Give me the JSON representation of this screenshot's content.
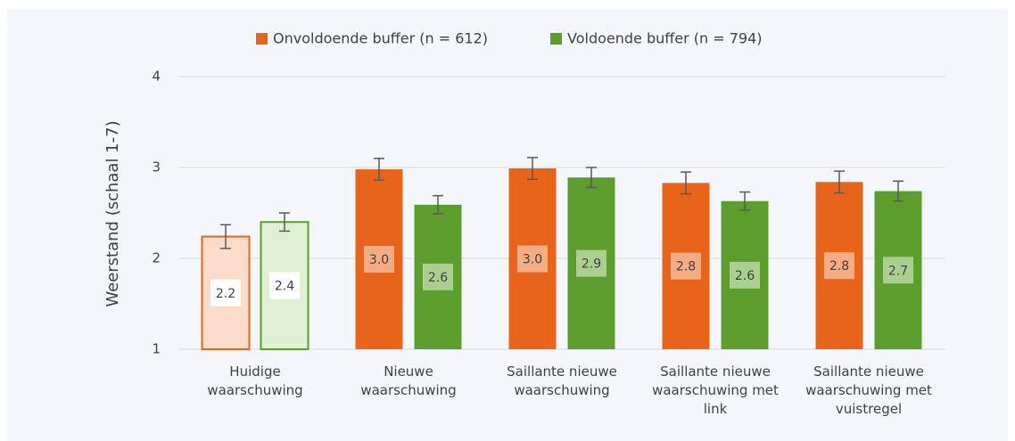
{
  "chart_data": {
    "type": "bar",
    "ylabel": "Weerstand (schaal 1-7)",
    "categories": [
      "Huidige waarschuwing",
      "Nieuwe waarschuwing",
      "Saillante nieuwe waarschuwing",
      "Saillante nieuwe waarschuwing met link",
      "Saillante nieuwe waarschuwing met vuistregel"
    ],
    "series": [
      {
        "name": "Onvoldoende buffer (n = 612)",
        "color": "#e8641b",
        "light_color": "#fbdccb",
        "values": [
          2.24,
          2.98,
          2.99,
          2.83,
          2.84
        ],
        "value_labels": [
          "2.2",
          "3.0",
          "3.0",
          "2.8",
          "2.8"
        ],
        "errors": [
          0.13,
          0.12,
          0.12,
          0.12,
          0.12
        ]
      },
      {
        "name": "Voldoende buffer (n = 794)",
        "color": "#5c9e2e",
        "light_color": "#dff0d3",
        "values": [
          2.4,
          2.59,
          2.89,
          2.63,
          2.74
        ],
        "value_labels": [
          "2.4",
          "2.6",
          "2.9",
          "2.6",
          "2.7"
        ],
        "errors": [
          0.1,
          0.1,
          0.11,
          0.1,
          0.11
        ]
      }
    ],
    "outlined": [
      true,
      false,
      false,
      false,
      false
    ],
    "ylim": [
      1,
      4
    ],
    "yticks": [
      1,
      2,
      3,
      4
    ],
    "grid": true,
    "legend": "top"
  }
}
